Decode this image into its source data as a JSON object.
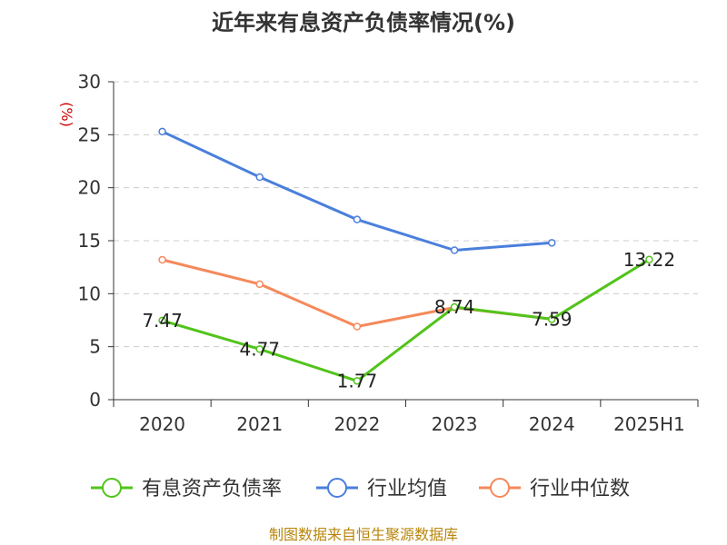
{
  "chart_data": {
    "type": "line",
    "title": "近年来有息资产负债率情况(%)",
    "unit_label": "(%)",
    "categories": [
      "2020",
      "2021",
      "2022",
      "2023",
      "2024",
      "2025H1"
    ],
    "y_ticks": [
      "0",
      "5",
      "10",
      "15",
      "20",
      "25",
      "30"
    ],
    "ylim": [
      0,
      30
    ],
    "grid": true,
    "legend_position": "bottom",
    "series": [
      {
        "name": "有息资产负债率",
        "color": "#52c41a",
        "values": [
          7.47,
          4.77,
          1.77,
          8.74,
          7.59,
          13.22
        ],
        "labels": [
          "7.47",
          "4.77",
          "1.77",
          "8.74",
          "7.59",
          "13.22"
        ]
      },
      {
        "name": "行业均值",
        "color": "#4a7fdc",
        "values": [
          25.3,
          21.0,
          17.0,
          14.1,
          14.8,
          null
        ]
      },
      {
        "name": "行业中位数",
        "color": "#f5895b",
        "values": [
          13.2,
          10.9,
          6.9,
          8.7,
          7.6,
          null
        ]
      }
    ]
  },
  "source": "制图数据来自恒生聚源数据库"
}
